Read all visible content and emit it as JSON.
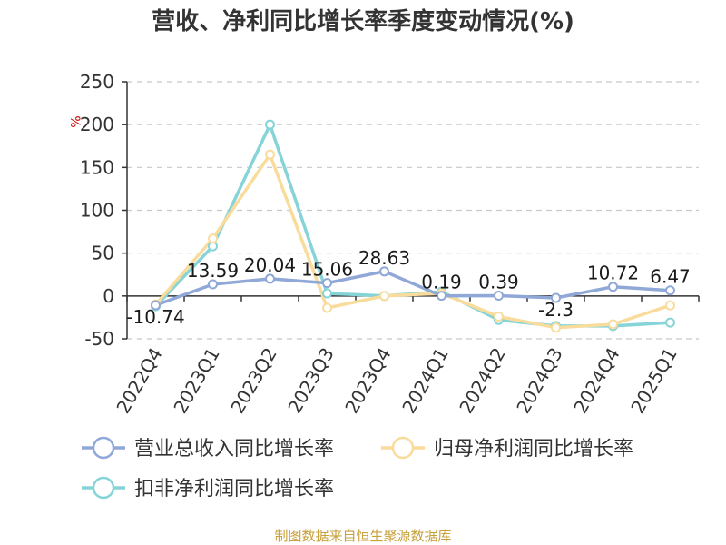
{
  "chart_data": {
    "type": "line",
    "title": "营收、净利同比增长率季度变动情况(%)",
    "ylabel": "%",
    "xlabel": "",
    "ylim": [
      -50,
      250
    ],
    "yticks": [
      -50,
      0,
      50,
      100,
      150,
      200,
      250
    ],
    "grid": true,
    "legend_position": "bottom",
    "categories": [
      "2022Q4",
      "2023Q1",
      "2023Q2",
      "2023Q3",
      "2023Q4",
      "2024Q1",
      "2024Q2",
      "2024Q3",
      "2024Q4",
      "2025Q1"
    ],
    "series": [
      {
        "name": "营业总收入同比增长率",
        "color": "#8fa8d8",
        "values": [
          -10.74,
          13.59,
          20.04,
          15.06,
          28.63,
          0.19,
          0.39,
          -2.3,
          10.72,
          6.47
        ],
        "labels": [
          "-10.74",
          "13.59",
          "20.04",
          "15.06",
          "28.63",
          "0.19",
          "0.39",
          "-2.3",
          "10.72",
          "6.47"
        ]
      },
      {
        "name": "归母净利润同比增长率",
        "color": "#f9dc9c",
        "values": [
          -10,
          67,
          165,
          -14,
          0,
          3,
          -24,
          -37,
          -33,
          -11
        ]
      },
      {
        "name": "扣非净利润同比增长率",
        "color": "#86d4d8",
        "values": [
          -12,
          58,
          200,
          3,
          0,
          5,
          -28,
          -35,
          -35,
          -31
        ]
      }
    ],
    "source": "制图数据来自恒生聚源数据库"
  }
}
